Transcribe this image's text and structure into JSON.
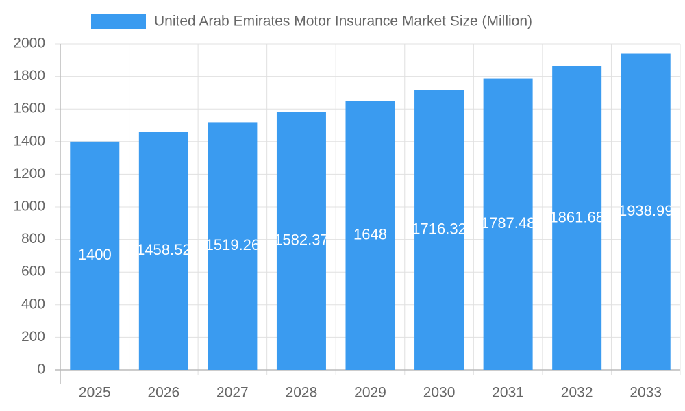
{
  "chart_data": {
    "type": "bar",
    "series": [
      {
        "name": "United Arab Emirates Motor Insurance Market Size (Million)",
        "color": "#3a9bf0",
        "values": [
          1400,
          1458.52,
          1519.26,
          1582.37,
          1648,
          1716.32,
          1787.48,
          1861.68,
          1938.99
        ]
      }
    ],
    "categories": [
      "2025",
      "2026",
      "2027",
      "2028",
      "2029",
      "2030",
      "2031",
      "2032",
      "2033"
    ],
    "ylim": [
      0,
      2000
    ],
    "yticks": [
      0,
      200,
      400,
      600,
      800,
      1000,
      1200,
      1400,
      1600,
      1800,
      2000
    ],
    "grid": true,
    "legend": "top"
  }
}
